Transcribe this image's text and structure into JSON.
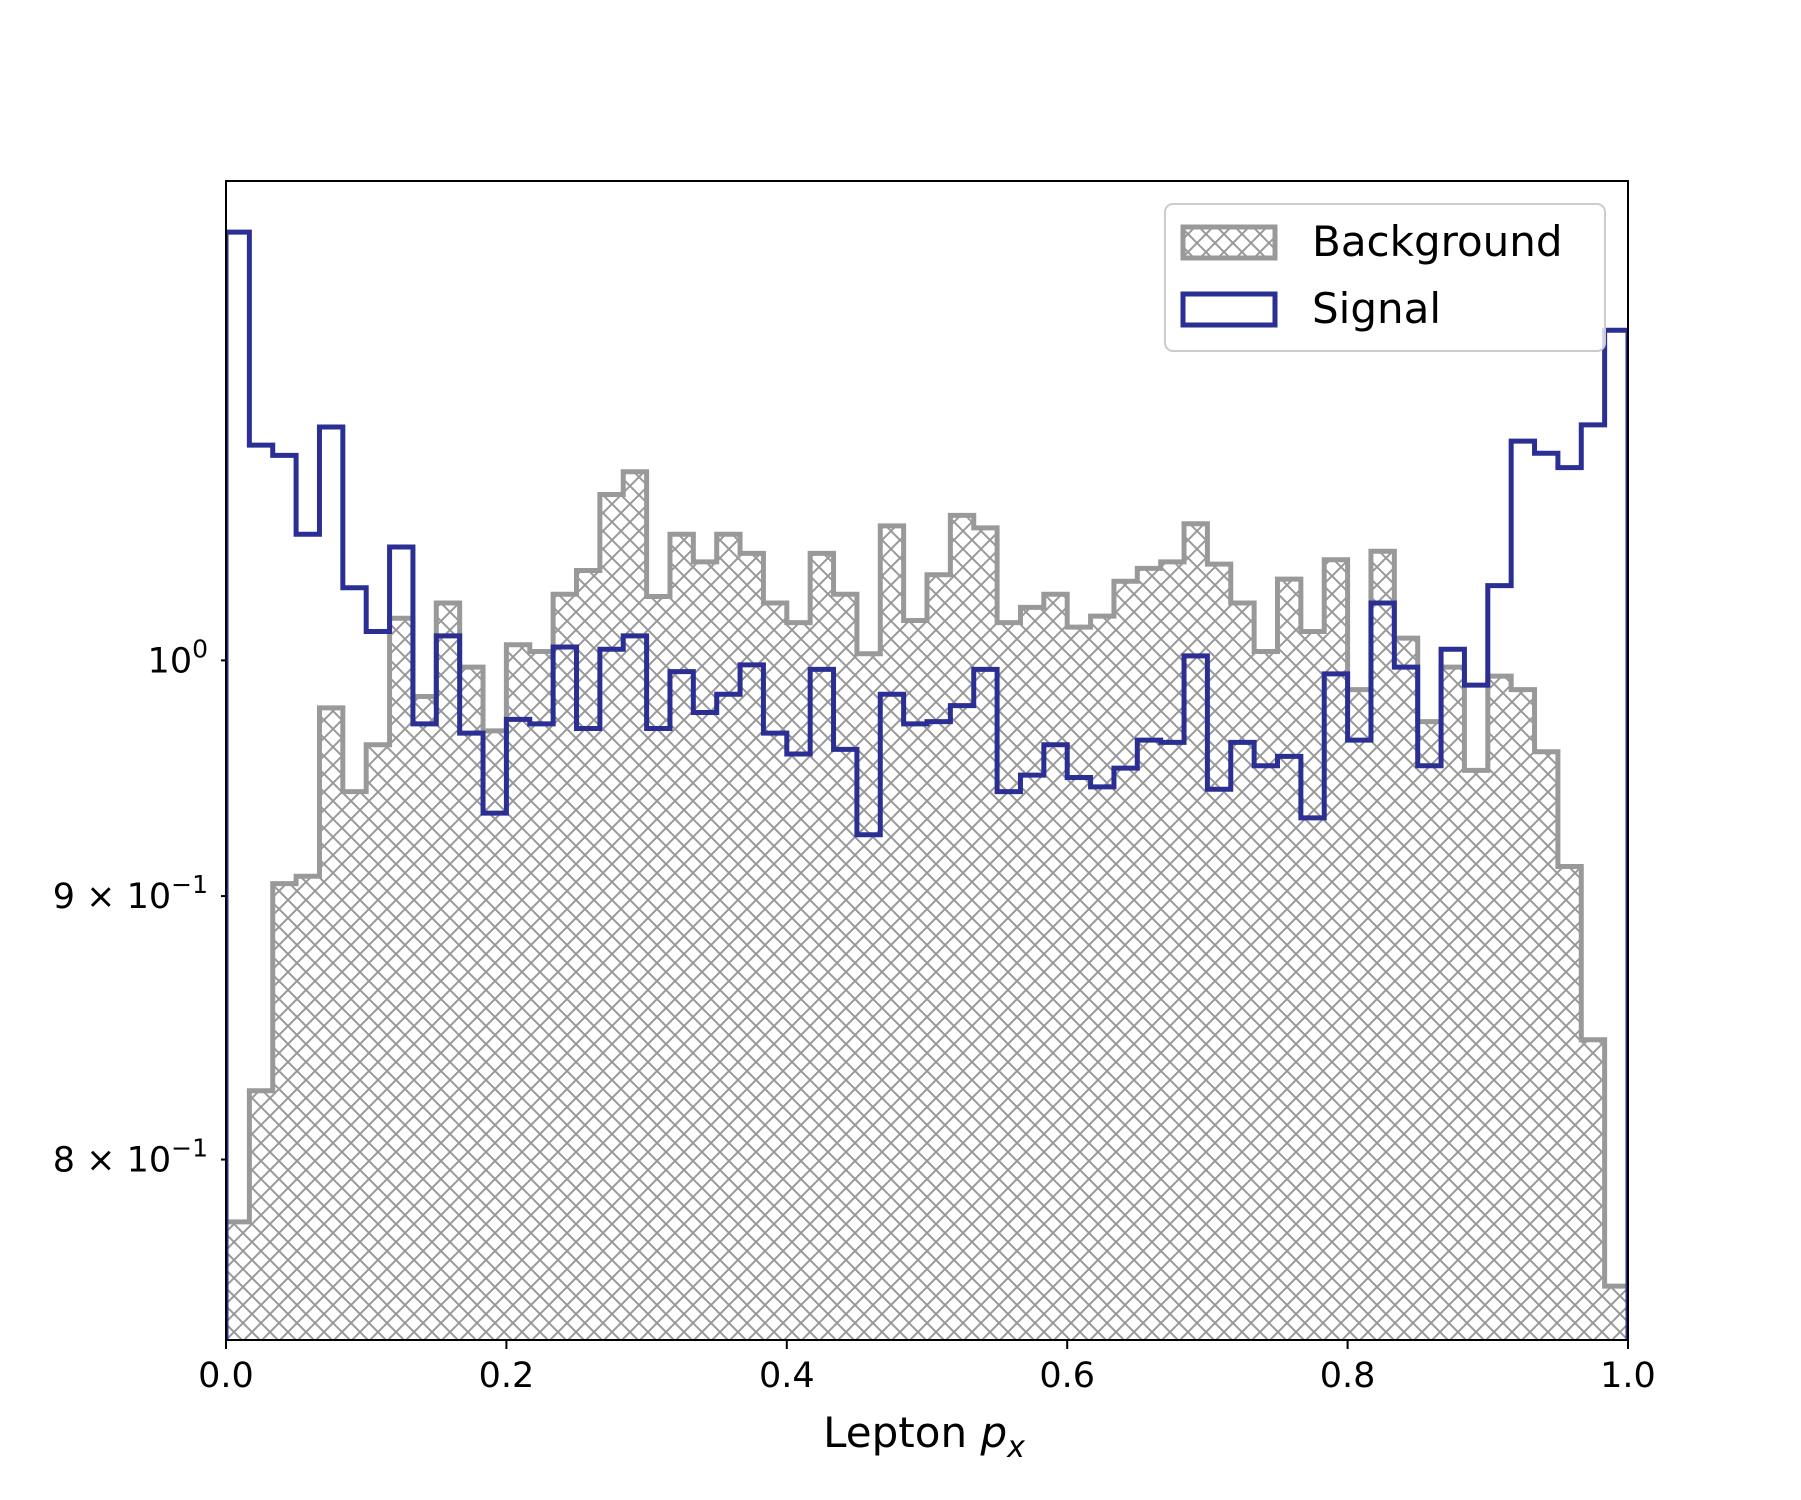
{
  "chart_data": {
    "type": "histogram",
    "title": "",
    "xlabel": "Lepton",
    "xlabel_math": "p",
    "xlabel_sub": "x",
    "ylabel": "",
    "yscale": "log",
    "xlim": [
      0.0,
      1.0
    ],
    "ylim": [
      0.738,
      1.239
    ],
    "bins": 60,
    "x_ticks": [
      {
        "value": 0.0,
        "label": "0.0"
      },
      {
        "value": 0.2,
        "label": "0.2"
      },
      {
        "value": 0.4,
        "label": "0.4"
      },
      {
        "value": 0.6,
        "label": "0.6"
      },
      {
        "value": 0.8,
        "label": "0.8"
      },
      {
        "value": 1.0,
        "label": "1.0"
      }
    ],
    "y_ticks": [
      {
        "value": 1.0,
        "mantissa": "",
        "base": "10",
        "exp": "0"
      },
      {
        "value": 0.9,
        "mantissa": "9 × ",
        "base": "10",
        "exp": "−1"
      },
      {
        "value": 0.8,
        "mantissa": "8 × ",
        "base": "10",
        "exp": "−1"
      }
    ],
    "legend": {
      "placement": "upper-right"
    },
    "series": [
      {
        "name": "Background",
        "style": "hatched-fill",
        "color": "#999999",
        "values": [
          0.778,
          0.825,
          0.905,
          0.908,
          0.979,
          0.943,
          0.963,
          1.019,
          0.984,
          1.026,
          0.997,
          0.969,
          1.007,
          1.004,
          1.03,
          1.041,
          1.077,
          1.088,
          1.029,
          1.058,
          1.045,
          1.058,
          1.049,
          1.026,
          1.017,
          1.049,
          1.03,
          1.003,
          1.062,
          1.018,
          1.039,
          1.067,
          1.061,
          1.017,
          1.024,
          1.03,
          1.015,
          1.02,
          1.036,
          1.042,
          1.045,
          1.063,
          1.044,
          1.026,
          1.004,
          1.037,
          1.013,
          1.046,
          0.987,
          1.05,
          1.01,
          0.973,
          0.997,
          0.952,
          0.993,
          0.987,
          0.96,
          0.912,
          0.844,
          0.756
        ]
      },
      {
        "name": "Signal",
        "style": "step",
        "color": "#2b2f94",
        "values": [
          1.211,
          1.101,
          1.096,
          1.058,
          1.11,
          1.033,
          1.013,
          1.052,
          0.972,
          1.011,
          0.968,
          0.934,
          0.974,
          0.972,
          1.006,
          0.97,
          1.005,
          1.011,
          0.97,
          0.995,
          0.977,
          0.985,
          0.998,
          0.968,
          0.959,
          0.996,
          0.961,
          0.925,
          0.985,
          0.972,
          0.973,
          0.98,
          0.996,
          0.943,
          0.95,
          0.963,
          0.949,
          0.945,
          0.953,
          0.965,
          0.964,
          1.002,
          0.944,
          0.964,
          0.954,
          0.958,
          0.932,
          0.994,
          0.965,
          1.026,
          0.997,
          0.954,
          1.005,
          0.989,
          1.034,
          1.103,
          1.097,
          1.09,
          1.111,
          1.159
        ]
      }
    ]
  }
}
